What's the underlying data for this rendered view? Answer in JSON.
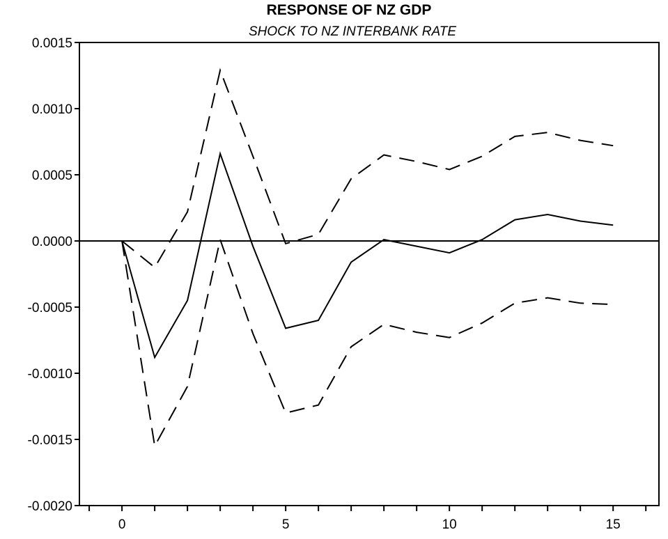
{
  "chart_data": {
    "type": "line",
    "title": "RESPONSE OF NZ GDP",
    "subtitle": "SHOCK TO NZ INTERBANK RATE",
    "xlabel": "",
    "ylabel": "",
    "x": [
      0,
      1,
      2,
      3,
      4,
      5,
      6,
      7,
      8,
      9,
      10,
      11,
      12,
      13,
      14,
      15
    ],
    "xlim": [
      -1.3,
      16.4
    ],
    "ylim": [
      -0.002,
      0.0015
    ],
    "x_ticks": [
      0,
      5,
      10,
      15
    ],
    "x_tick_labels": [
      "0",
      "5",
      "10",
      "15"
    ],
    "y_ticks": [
      -0.002,
      -0.0015,
      -0.001,
      -0.0005,
      0.0,
      0.0005,
      0.001,
      0.0015
    ],
    "y_tick_labels": [
      "-0.0020",
      "-0.0015",
      "-0.0010",
      "-0.0005",
      "0.0000",
      "0.0005",
      "0.0010",
      "0.0015"
    ],
    "zero_line": true,
    "grid": false,
    "legend": "none",
    "series": [
      {
        "style": "solid",
        "color": "#000000",
        "values": [
          0.0,
          -0.00088,
          -0.00045,
          0.00066,
          -4e-05,
          -0.00066,
          -0.0006,
          -0.00016,
          1e-05,
          -4e-05,
          -9e-05,
          1e-05,
          0.00016,
          0.0002,
          0.00015,
          0.00012
        ]
      },
      {
        "style": "dashed",
        "color": "#000000",
        "values": [
          0.0,
          -0.0002,
          0.00022,
          0.00129,
          0.00064,
          -2e-05,
          5e-05,
          0.00047,
          0.00065,
          0.0006,
          0.00054,
          0.00064,
          0.00079,
          0.00082,
          0.00076,
          0.00072
        ]
      },
      {
        "style": "dashed",
        "color": "#000000",
        "values": [
          0.0,
          -0.00155,
          -0.0011,
          1e-05,
          -0.0007,
          -0.0013,
          -0.00124,
          -0.0008,
          -0.00063,
          -0.00069,
          -0.00073,
          -0.00062,
          -0.00047,
          -0.00043,
          -0.00047,
          -0.00048
        ]
      }
    ]
  }
}
